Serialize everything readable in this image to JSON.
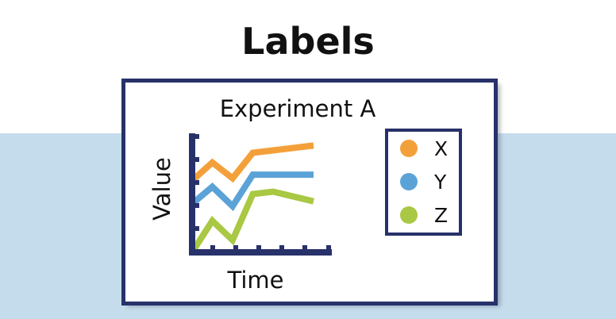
{
  "page": {
    "title": "Labels"
  },
  "chart_data": {
    "type": "line",
    "title": "Experiment A",
    "xlabel": "Time",
    "ylabel": "Value",
    "x": [
      0,
      1,
      2,
      3,
      4,
      5,
      6
    ],
    "series": [
      {
        "name": "X",
        "color": "#f4a03a",
        "values": [
          5.9,
          7.4,
          6.1,
          8.2,
          8.4,
          8.6,
          8.8
        ]
      },
      {
        "name": "Y",
        "color": "#5ba3d7",
        "values": [
          4.0,
          5.4,
          3.8,
          6.4,
          6.4,
          6.4,
          6.4
        ]
      },
      {
        "name": "Z",
        "color": "#a9c843",
        "values": [
          0.0,
          2.6,
          1.0,
          4.8,
          5.0,
          4.6,
          4.2
        ]
      }
    ],
    "legend": "right",
    "grid": false
  }
}
